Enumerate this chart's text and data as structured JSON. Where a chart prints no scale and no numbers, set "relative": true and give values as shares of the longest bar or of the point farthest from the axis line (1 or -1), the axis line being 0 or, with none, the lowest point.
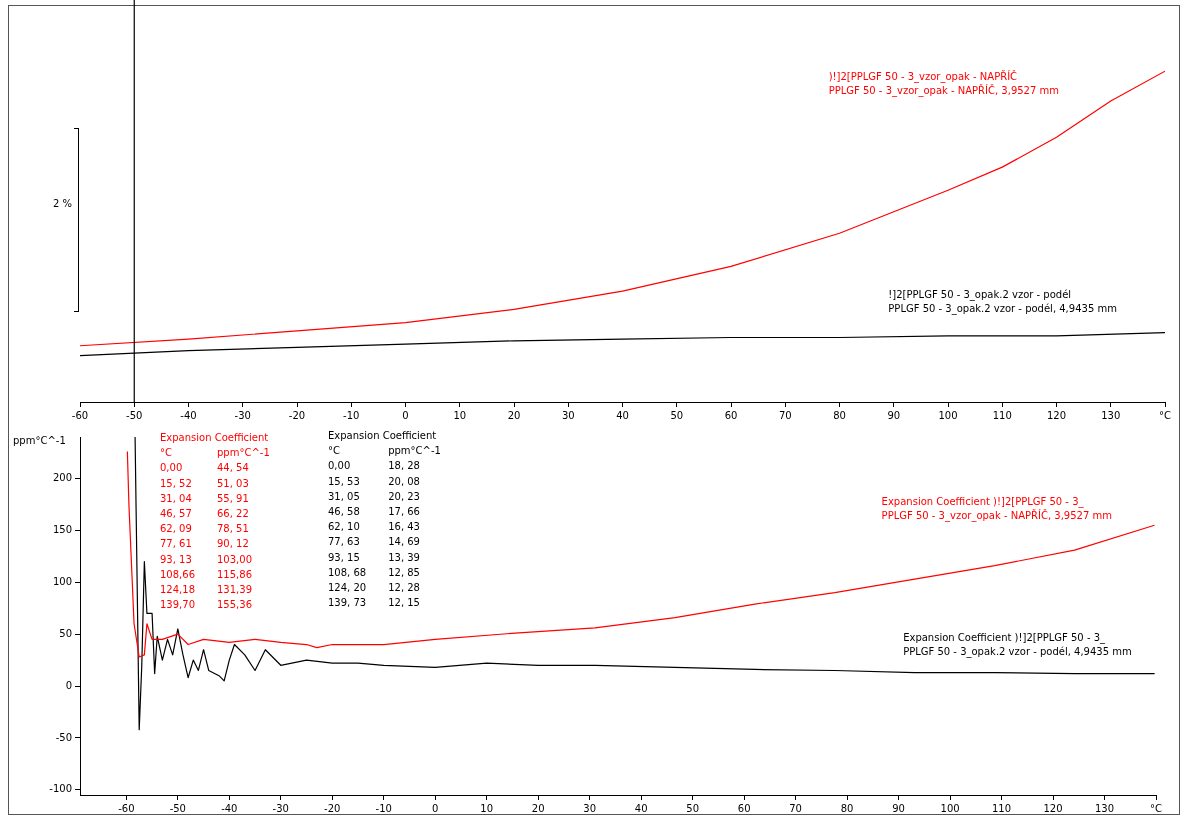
{
  "chart_data": [
    {
      "type": "line",
      "relative": true,
      "marker": "none",
      "xlim": [
        -60,
        140
      ],
      "xticks": [
        -60,
        -50,
        -40,
        -30,
        -20,
        -10,
        0,
        10,
        20,
        30,
        40,
        50,
        60,
        70,
        80,
        90,
        100,
        110,
        120,
        130,
        {
          "value": 140,
          "label": "°C"
        }
      ],
      "annotations": [
        "2 %"
      ],
      "ref_lines": [
        {
          "axis": "x",
          "value": -50,
          "color": "#000000"
        }
      ],
      "series": [
        {
          "name": ")!]2[PPLGF 50 - 3_vzor_opak - NAPŘÍČ\nPPLGF 50 - 3_vzor_opak - NAPŘÍČ, 3,9527 mm",
          "color": "#ff0000",
          "x": [
            -60,
            -40,
            -20,
            0,
            20,
            40,
            60,
            80,
            100,
            110,
            120,
            130,
            140
          ],
          "values": [
            0.17,
            0.19,
            0.215,
            0.24,
            0.28,
            0.335,
            0.41,
            0.51,
            0.64,
            0.71,
            0.8,
            0.91,
            1
          ]
        },
        {
          "name": "!]2[PPLGF 50 - 3_opak.2 vzor - podél\nPPLGF 50 - 3_opak.2 vzor - podél, 4,9435 mm",
          "color": "#000000",
          "x": [
            -60,
            -40,
            -20,
            0,
            20,
            40,
            60,
            80,
            100,
            120,
            140
          ],
          "values": [
            0.14,
            0.155,
            0.165,
            0.175,
            0.185,
            0.19,
            0.195,
            0.195,
            0.2,
            0.2,
            0.21
          ]
        }
      ]
    },
    {
      "type": "line",
      "marker": "none",
      "ylabel": "ppm°C^-1",
      "xlim": [
        -69,
        140
      ],
      "ylim": [
        -105,
        240
      ],
      "xticks": [
        -60,
        -50,
        -40,
        -30,
        -20,
        -10,
        0,
        10,
        20,
        30,
        40,
        50,
        60,
        70,
        80,
        90,
        100,
        110,
        120,
        130,
        {
          "value": 140,
          "label": "°C"
        }
      ],
      "yticks": [
        -100,
        -50,
        0,
        50,
        100,
        150,
        200
      ],
      "annotations": [
        "Expansion Coefficient\n°C\tppm°C^-1\n0,00\t44, 54\n15, 52\t51, 03\n31, 04\t55, 91\n46, 57\t66, 22\n62, 09\t78, 51\n77, 61\t90, 12\n93, 13\t103,00\n108,66\t115,86\n124,18\t131,39\n139,70\t155,36",
        "Expansion Coefficient\n°C\tppm°C^-1\n0,00\t18, 28\n15, 53\t20, 08\n31, 05\t20, 23\n46, 58\t17, 66\n62, 10\t16, 43\n77, 63\t14, 69\n93, 15\t13, 39\n108, 68\t12, 85\n124, 20\t12, 28\n139, 73\t12, 15"
      ],
      "series": [
        {
          "name": "Expansion Coefficient )!]2[PPLGF 50 - 3_\nPPLGF 50 - 3_vzor_opak - NAPŘÍČ, 3,9527 mm",
          "color": "#ff0000",
          "x": [
            -59.8,
            -59.5,
            -58.5,
            -57.5,
            -56.5,
            -56,
            -55,
            -53,
            -50,
            -48,
            -45,
            -40,
            -35,
            -30,
            -25,
            -23,
            -20,
            -10,
            0,
            15.52,
            31.04,
            46.57,
            62.09,
            77.61,
            93.13,
            108.66,
            124.18,
            139.7
          ],
          "values": [
            226,
            175,
            60,
            28,
            30,
            60,
            45,
            45,
            50,
            40,
            45,
            42,
            45,
            42,
            40,
            37,
            40,
            40,
            45,
            51,
            56,
            66,
            79,
            90,
            103,
            116,
            131,
            155
          ]
        },
        {
          "name": "Expansion Coefficient )!]2[PPLGF 50 - 3_\nPPLGF 50 - 3_opak.2 vzor - podél, 4,9435 mm",
          "color": "#000000",
          "x": [
            -58.3,
            -57.5,
            -57,
            -56.5,
            -56,
            -55,
            -54.5,
            -54,
            -53,
            -52,
            -51,
            -50,
            -49,
            -48,
            -47,
            -46,
            -45,
            -44,
            -42,
            -41,
            -40,
            -39,
            -37,
            -35,
            -33,
            -30,
            -25,
            -20,
            -15,
            -10,
            0,
            10,
            20,
            31.05,
            46.58,
            62.1,
            77.63,
            93.15,
            108.68,
            124.2,
            139.73
          ],
          "values": [
            240,
            -42,
            20,
            120,
            70,
            70,
            12,
            48,
            25,
            45,
            30,
            55,
            30,
            8,
            25,
            15,
            35,
            15,
            10,
            5,
            25,
            40,
            30,
            15,
            35,
            20,
            25,
            22,
            22,
            20,
            18,
            22,
            20,
            20,
            18,
            16,
            15,
            13,
            13,
            12,
            12
          ]
        }
      ]
    }
  ]
}
